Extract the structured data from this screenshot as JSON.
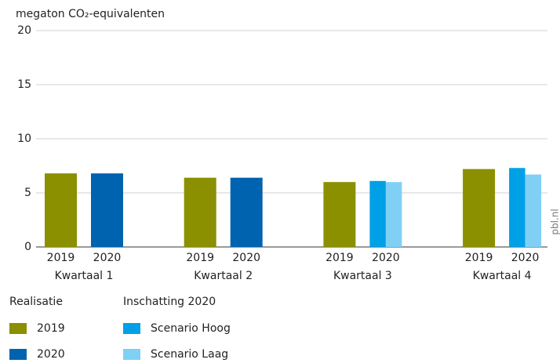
{
  "chart_data": {
    "type": "bar",
    "ylabel": "megaton CO₂-equivalenten",
    "categories": [
      "Kwartaal 1",
      "Kwartaal 2",
      "Kwartaal 3",
      "Kwartaal 4"
    ],
    "bar_labels": [
      "2019",
      "2020"
    ],
    "legend_titles": [
      "Realisatie",
      "Inschatting 2020"
    ],
    "series": [
      {
        "name": "2019",
        "color": "#8a9000",
        "values": [
          6.8,
          6.4,
          6.0,
          7.2
        ]
      },
      {
        "name": "2020",
        "color": "#0063b0",
        "values": [
          6.8,
          6.4,
          null,
          null
        ]
      },
      {
        "name": "Scenario Hoog",
        "color": "#00a0e6",
        "values": [
          null,
          null,
          6.1,
          7.3
        ]
      },
      {
        "name": "Scenario Laag",
        "color": "#80d0f5",
        "values": [
          null,
          null,
          6.0,
          6.7
        ]
      }
    ],
    "ylim": [
      0,
      20
    ],
    "yticks": [
      0,
      5,
      10,
      15,
      20
    ],
    "grid": true,
    "source": "pbl.nl"
  }
}
